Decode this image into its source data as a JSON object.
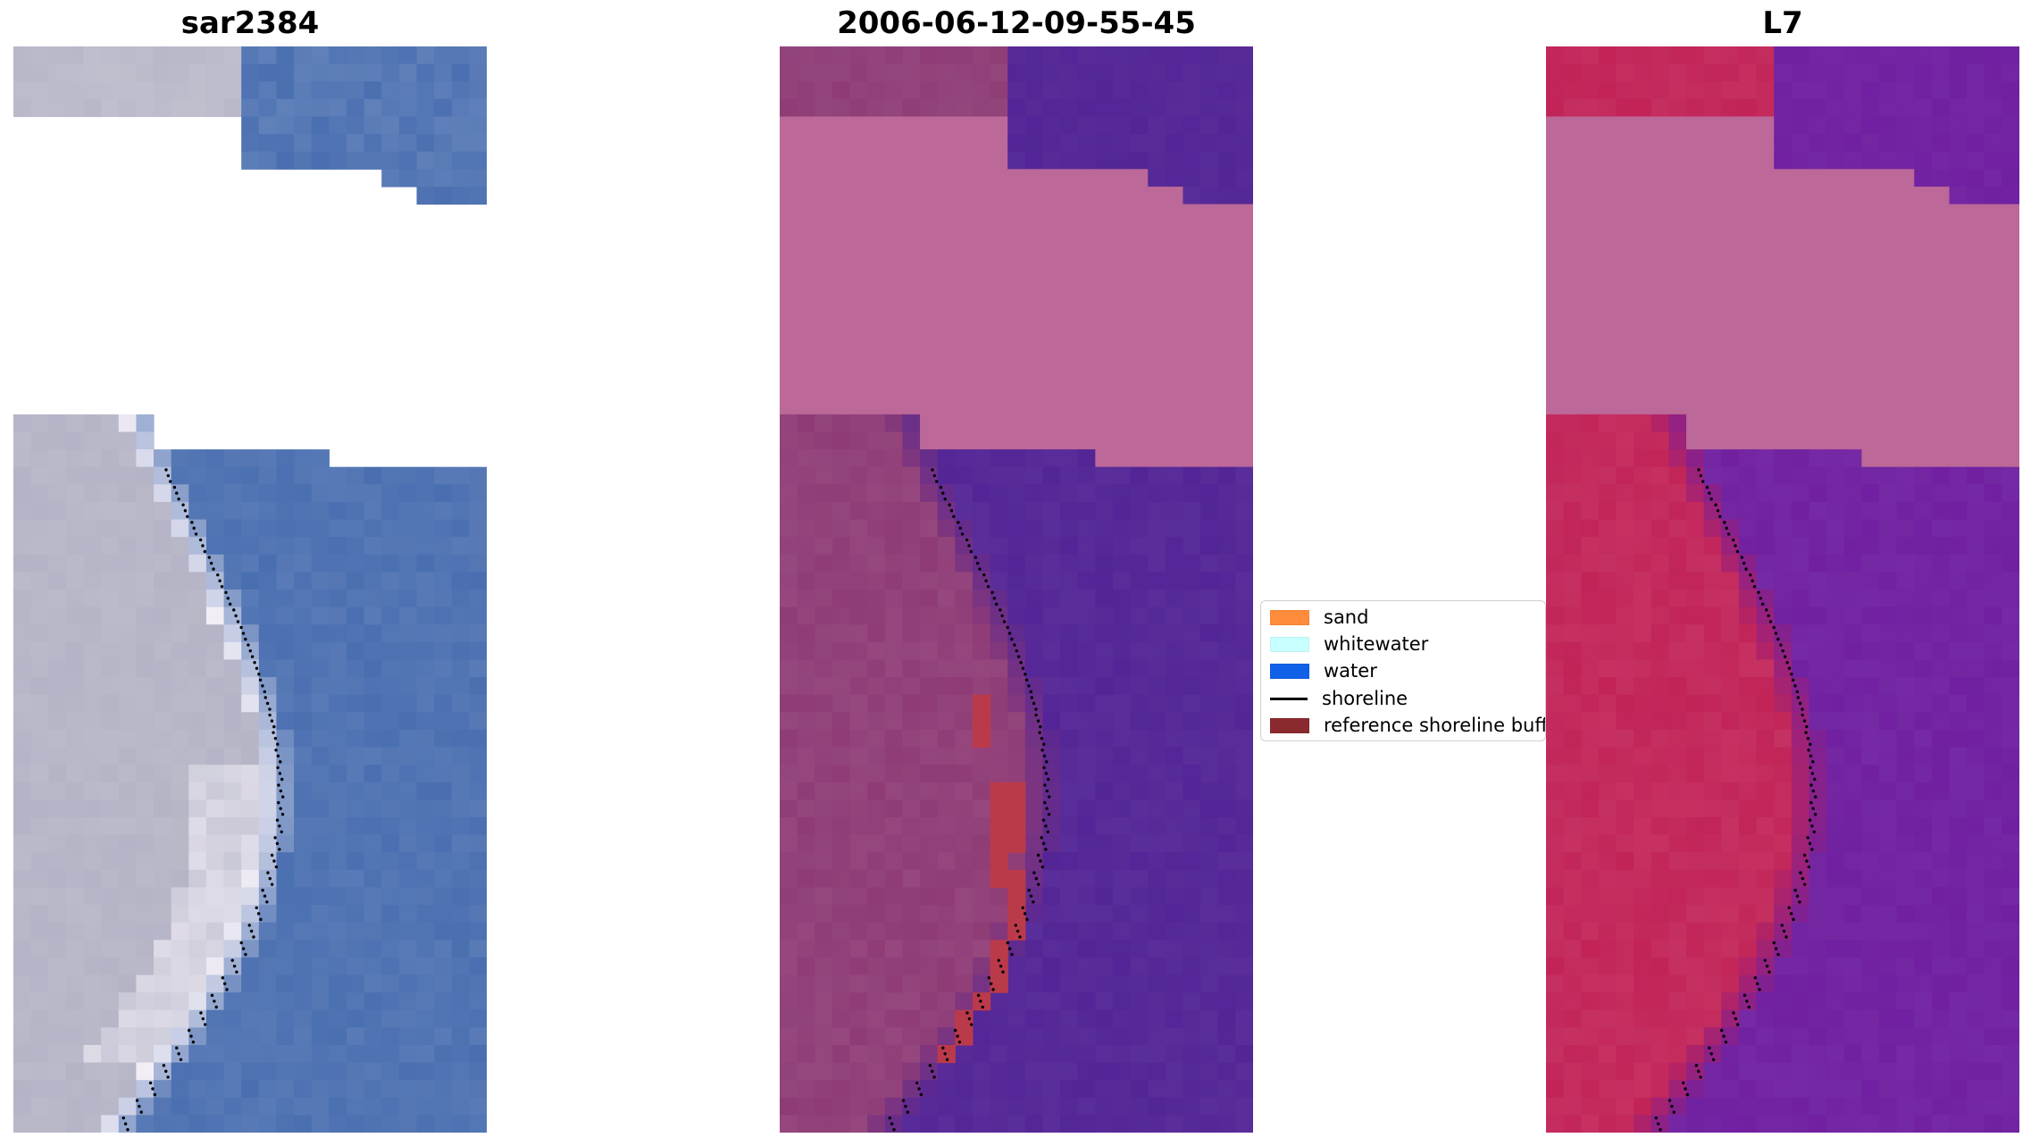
{
  "panels": [
    {
      "id": "rgb",
      "title": "sar2384",
      "kind": "rgb"
    },
    {
      "id": "classified",
      "title": "2006-06-12-09-55-45",
      "kind": "classified"
    },
    {
      "id": "mndwi",
      "title": "L7",
      "kind": "index"
    }
  ],
  "legend": {
    "items": [
      {
        "label": "sand",
        "color": "#ff8c3a",
        "type": "patch"
      },
      {
        "label": "whitewater",
        "color": "#c8ffff",
        "type": "patch"
      },
      {
        "label": "water",
        "color": "#1060e8",
        "type": "patch"
      },
      {
        "label": "shoreline",
        "color": "#000000",
        "type": "line"
      },
      {
        "label": "reference shoreline buffer",
        "color": "#8b2a2e",
        "type": "patch"
      }
    ]
  },
  "colors": {
    "rgb_water": "#4a6fb0",
    "rgb_sand": "#b4b4c6",
    "rgb_white": "#f2eef6",
    "class_water": "#532596",
    "class_land": "#8f3c76",
    "class_nodata": "#bc6898",
    "class_buffer": "#bb3a4a",
    "index_water": "#7020a0",
    "index_land": "#c22458",
    "index_nodata": "#bc6898",
    "shoreline_dots": "#000000"
  }
}
